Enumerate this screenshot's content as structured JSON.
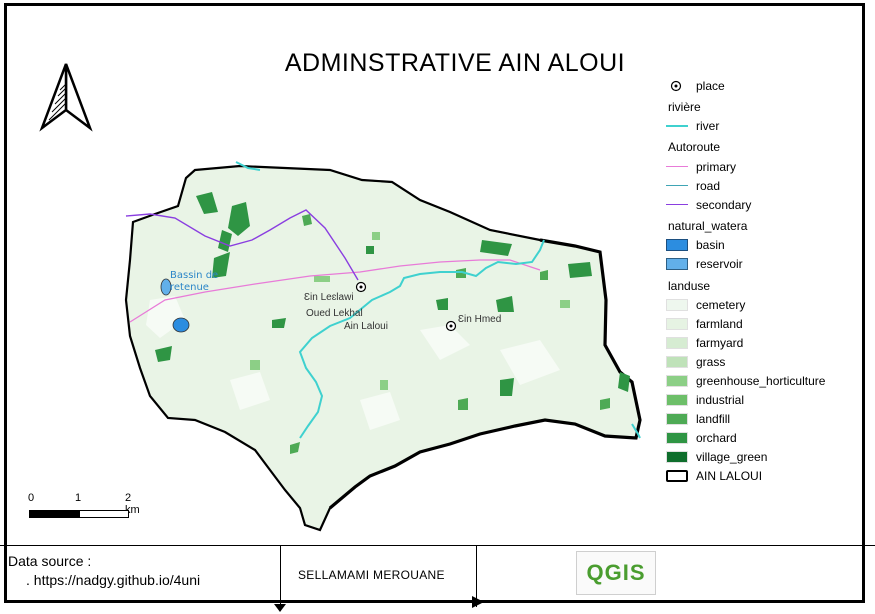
{
  "map_title": "ADMINSTRATIVE AIN ALOUI",
  "place_labels": {
    "ein_leclawi": "Ɛin Leɛlawi",
    "oued_lekhal": "Oued Lekhal",
    "ain_laloui": "Ain Laloui",
    "ein_hmed": "Ɛin Hmed",
    "bassin": "Bassin de retenue"
  },
  "legend": {
    "place": "place",
    "riviere_title": "rivière",
    "river": "river",
    "autoroute_title": "Autoroute",
    "primary": "primary",
    "road": "road",
    "secondary": "secondary",
    "water_title": "natural_watera",
    "basin": "basin",
    "reservoir": "reservoir",
    "landuse_title": "landuse",
    "landuse_items": [
      "cemetery",
      "farmland",
      "farmyard",
      "grass",
      "greenhouse_horticulture",
      "industrial",
      "landfill",
      "orchard",
      "village_green"
    ],
    "boundary": "AIN LALOUI"
  },
  "colors": {
    "river": "#3fd1cf",
    "primary": "#e87bd8",
    "road": "#3fa5b5",
    "secondary": "#8a3ee0",
    "basin": "#2c8de0",
    "reservoir": "#62b0ea",
    "cemetery": "#eef7ee",
    "farmland": "#e6f3e3",
    "farmyard": "#d6ecd2",
    "grass": "#bfe2b9",
    "greenhouse_horticulture": "#8ccf86",
    "industrial": "#6dbf69",
    "landfill": "#4eaa55",
    "orchard": "#2f9544",
    "village_green": "#0f6e2c",
    "boundary": "#000000"
  },
  "scale": {
    "ticks": [
      "0",
      "1",
      "2 km"
    ]
  },
  "footer": {
    "data_source_title": "Data source :",
    "data_source_url": ". https://nadgy.github.io/4uni",
    "author": "SELLAMAMI  MEROUANE",
    "logo_text": "QGIS"
  }
}
